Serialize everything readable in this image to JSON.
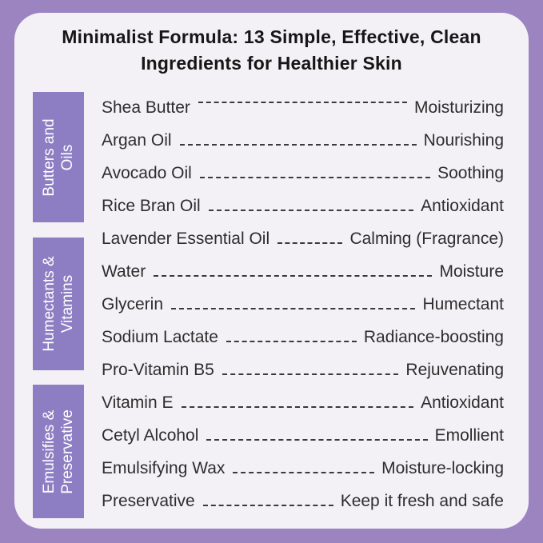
{
  "page": {
    "frame_color": "#9c84c1",
    "card_color": "#f3f1f6",
    "group_block_color": "#8d7ec4",
    "text_color": "#2d2d2d",
    "title_color": "#161616"
  },
  "title": {
    "line1": "Minimalist Formula: 13 Simple, Effective, Clean",
    "line2": "Ingredients for Healthier Skin"
  },
  "groups": [
    {
      "line1": "Butters and",
      "line2": "Oils"
    },
    {
      "line1": "Humectants &",
      "line2": "Vitamins"
    },
    {
      "line1": "Emulsifies &",
      "line2": "Preservative"
    }
  ],
  "ingredients": [
    {
      "name": "Shea Butter",
      "benefit": "Moisturizing"
    },
    {
      "name": "Argan Oil",
      "benefit": "Nourishing"
    },
    {
      "name": "Avocado Oil",
      "benefit": "Soothing"
    },
    {
      "name": "Rice Bran Oil",
      "benefit": "Antioxidant"
    },
    {
      "name": "Lavender Essential Oil",
      "benefit": "Calming (Fragrance)"
    },
    {
      "name": "Water",
      "benefit": "Moisture"
    },
    {
      "name": "Glycerin",
      "benefit": "Humectant"
    },
    {
      "name": "Sodium Lactate",
      "benefit": "Radiance-boosting"
    },
    {
      "name": "Pro-Vitamin B5",
      "benefit": "Rejuvenating"
    },
    {
      "name": "Vitamin E",
      "benefit": "Antioxidant"
    },
    {
      "name": "Cetyl Alcohol",
      "benefit": "Emollient"
    },
    {
      "name": "Emulsifying Wax",
      "benefit": "Moisture-locking"
    },
    {
      "name": "Preservative",
      "benefit": "Keep it fresh and safe"
    }
  ]
}
